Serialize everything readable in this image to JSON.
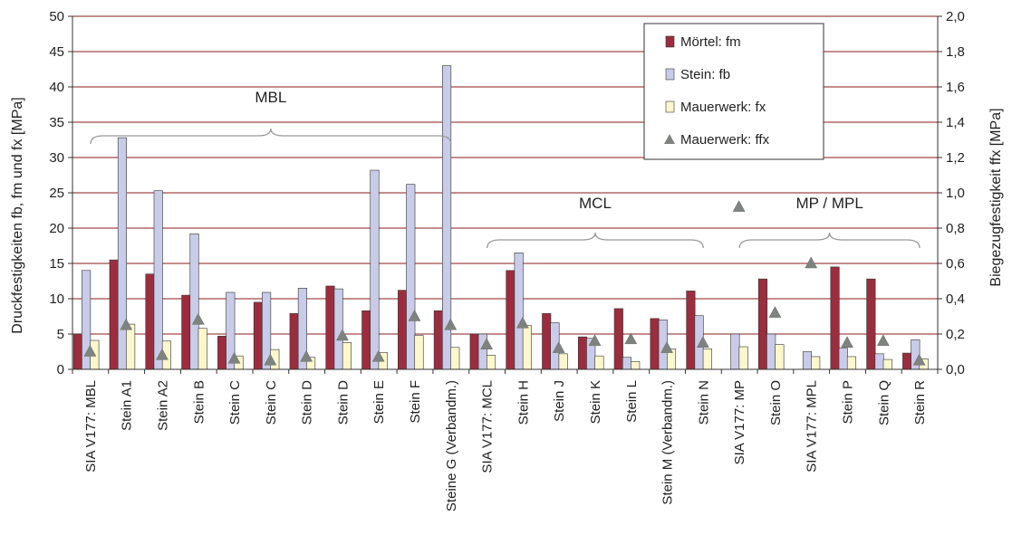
{
  "chart_data": {
    "type": "bar",
    "ylabel": "Druckfestigkeiten fb, fm und fx [MPa]",
    "y2label": "Biegezugfestigkeit ffx [MPa]",
    "ylim": [
      0,
      50
    ],
    "y2lim": [
      0,
      2.0
    ],
    "yticks": [
      "0",
      "5",
      "10",
      "15",
      "20",
      "25",
      "30",
      "35",
      "40",
      "45",
      "50"
    ],
    "y2ticks": [
      "0,0",
      "0,2",
      "0,4",
      "0,6",
      "0,8",
      "1,0",
      "1,2",
      "1,4",
      "1,6",
      "1,8",
      "2,0"
    ],
    "grid": true,
    "legend_position": "top-right",
    "categories": [
      "SIA V177: MBL",
      "Stein A1",
      "Stein A2",
      "Stein B",
      "Stein C",
      "Stein C",
      "Stein D",
      "Stein D",
      "Stein E",
      "Stein F",
      "Steine G (Verbandm.)",
      "SIA V177: MCL",
      "Stein H",
      "Stein J",
      "Stein K",
      "Stein L",
      "Stein M (Verbandm.)",
      "Stein N",
      "SIA V177: MP",
      "Stein O",
      "SIA V177: MPL",
      "Stein P",
      "Stein Q",
      "Stein R"
    ],
    "series": [
      {
        "name": "Mörtel: fm",
        "kind": "bar",
        "color": "#9b2d3f",
        "values": [
          5.0,
          15.5,
          13.5,
          10.5,
          4.7,
          9.5,
          7.9,
          11.8,
          8.3,
          11.2,
          8.3,
          5.0,
          14.0,
          7.9,
          4.6,
          8.6,
          7.2,
          11.1,
          null,
          12.8,
          null,
          14.5,
          12.8,
          2.3
        ]
      },
      {
        "name": "Stein: fb",
        "kind": "bar",
        "color": "#c9cce8",
        "values": [
          14.0,
          32.8,
          25.3,
          19.2,
          10.9,
          10.9,
          11.5,
          11.4,
          28.2,
          26.2,
          43.0,
          5.0,
          16.5,
          6.6,
          4.4,
          1.7,
          7.0,
          7.6,
          5.0,
          5.0,
          2.5,
          3.0,
          2.2,
          4.2
        ]
      },
      {
        "name": "Mauerwerk: fx",
        "kind": "bar",
        "color": "#fcf7cc",
        "values": [
          4.1,
          6.4,
          4.0,
          5.8,
          1.9,
          2.8,
          1.7,
          3.8,
          2.4,
          4.8,
          3.1,
          2.0,
          6.2,
          2.2,
          1.9,
          1.1,
          2.9,
          2.9,
          3.2,
          3.5,
          1.8,
          1.8,
          1.4,
          1.5
        ]
      },
      {
        "name": "Mauerwerk: ffx",
        "kind": "marker",
        "axis": "right",
        "color": "#7f837f",
        "values": [
          0.1,
          0.25,
          0.08,
          0.28,
          0.06,
          0.05,
          0.07,
          0.19,
          0.07,
          0.3,
          0.25,
          0.14,
          0.26,
          0.12,
          0.16,
          0.17,
          0.12,
          0.15,
          0.92,
          0.32,
          0.6,
          0.15,
          0.16,
          0.05
        ]
      }
    ],
    "group_labels": [
      {
        "text": "MBL",
        "from": 0,
        "to": 10
      },
      {
        "text": "MCL",
        "from": 11,
        "to": 17
      },
      {
        "text": "MP / MPL",
        "from": 18,
        "to": 23
      }
    ]
  }
}
